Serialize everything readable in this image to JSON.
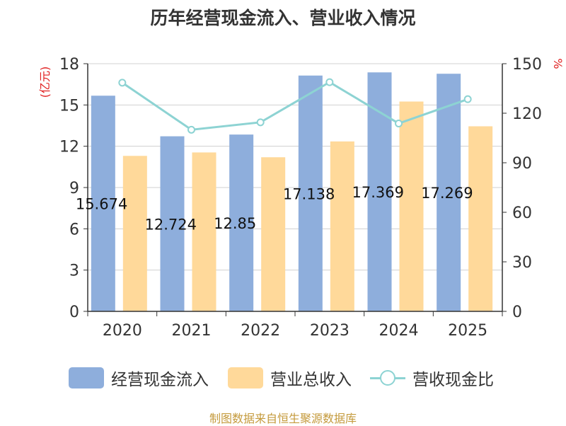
{
  "chart_data": {
    "type": "bar",
    "title": "历年经营现金流入、营业收入情况",
    "categories": [
      "2020",
      "2021",
      "2022",
      "2023",
      "2024",
      "2025"
    ],
    "series": [
      {
        "name": "经营现金流入",
        "type": "bar",
        "axis": "left",
        "color": "#8eaedc",
        "values": [
          15.674,
          12.724,
          12.85,
          17.138,
          17.369,
          17.269
        ],
        "data_labels": [
          "15.674",
          "12.724",
          "12.85",
          "17.138",
          "17.369",
          "17.269"
        ]
      },
      {
        "name": "营业总收入",
        "type": "bar",
        "axis": "left",
        "color": "#ffd99a",
        "values": [
          11.3,
          11.55,
          11.2,
          12.35,
          15.25,
          13.45
        ]
      },
      {
        "name": "营收现金比",
        "type": "line",
        "axis": "right",
        "color": "#8dd3d3",
        "values": [
          138.5,
          110,
          114.5,
          138.8,
          113.8,
          128.5
        ]
      }
    ],
    "ylabel_left": "(亿元)",
    "ylabel_right": "%",
    "ylim_left": [
      0,
      18
    ],
    "ylim_right": [
      0,
      150
    ],
    "yticks_left": [
      0,
      3,
      6,
      9,
      12,
      15,
      18
    ],
    "yticks_right": [
      0,
      30,
      60,
      90,
      120,
      150
    ],
    "grid": true,
    "legend_position": "bottom"
  },
  "footer": "制图数据来自恒生聚源数据库"
}
